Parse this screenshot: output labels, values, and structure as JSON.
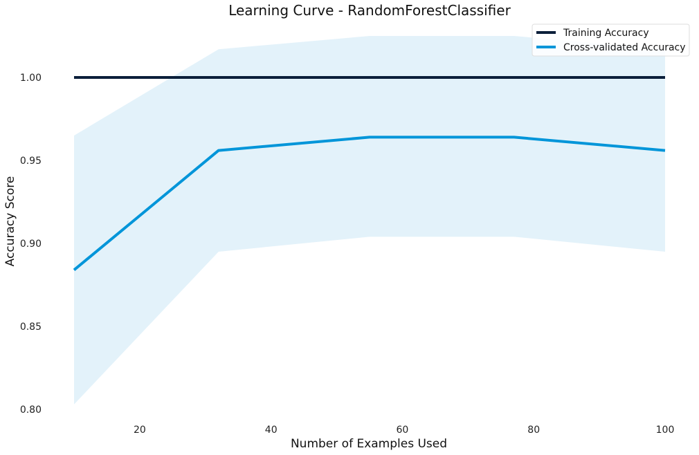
{
  "chart_data": {
    "type": "line",
    "title": "Learning Curve - RandomForestClassifier",
    "xlabel": "Number of Examples Used",
    "ylabel": "Accuracy Score",
    "xlim": [
      10,
      100
    ],
    "ylim": [
      0.8,
      1.03
    ],
    "xticks": [
      20,
      40,
      60,
      80,
      100
    ],
    "yticks": [
      0.8,
      0.85,
      0.9,
      0.95,
      1.0
    ],
    "ytick_labels": [
      "0.80",
      "0.85",
      "0.90",
      "0.95",
      "1.00"
    ],
    "grid": false,
    "legend_position": "top-right",
    "x": [
      10,
      32,
      55,
      77,
      100
    ],
    "series": [
      {
        "name": "Training Accuracy",
        "color": "#0b1f3a",
        "values": [
          1.0,
          1.0,
          1.0,
          1.0,
          1.0
        ],
        "band_lower": [
          1.0,
          1.0,
          1.0,
          1.0,
          1.0
        ],
        "band_upper": [
          1.0,
          1.0,
          1.0,
          1.0,
          1.0
        ]
      },
      {
        "name": "Cross-validated Accuracy",
        "color": "#0095d9",
        "band_color": "#e3f2fa",
        "values": [
          0.884,
          0.956,
          0.964,
          0.964,
          0.956
        ],
        "band_lower": [
          0.803,
          0.895,
          0.904,
          0.904,
          0.895
        ],
        "band_upper": [
          0.965,
          1.017,
          1.025,
          1.025,
          1.017
        ]
      }
    ]
  }
}
